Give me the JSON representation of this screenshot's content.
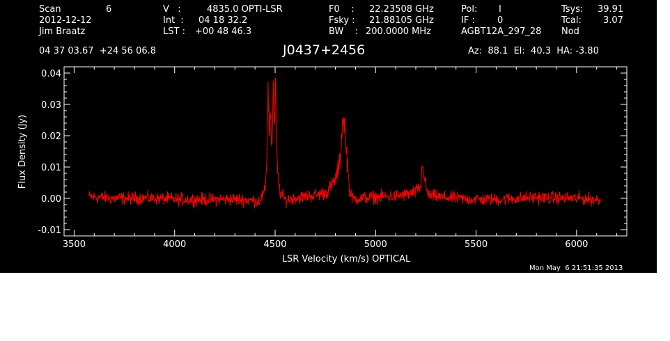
{
  "header": {
    "scan_label": "Scan",
    "scan_value": "6",
    "date": "2012-12-12",
    "observer": "Jim Braatz",
    "v_label": "V   :",
    "v_value": "4835.0 OPTI-LSR",
    "int_label": "Int  :",
    "int_value": "04 18 32.2",
    "lst_label": "LST :",
    "lst_value": "+00 48 46.3",
    "f0_label": "F0    :",
    "f0_value": "22.23508 GHz",
    "fsky_label": "Fsky :",
    "fsky_value": "21.88105 GHz",
    "bw_label": "BW    :",
    "bw_value": "200.0000 MHz",
    "pol_label": "Pol:",
    "pol_value": "I",
    "if_label": "IF :",
    "if_value": "0",
    "project": "AGBT12A_297_28",
    "tsys_label": "Tsys:",
    "tsys_value": "39.91",
    "tcal_label": "Tcal:",
    "tcal_value": "3.07",
    "proc": "Nod"
  },
  "coords": "04 37 03.67  +24 56 06.8",
  "source": "J0437+2456",
  "pointing": "Az:  88.1  El:  40.3  HA: -3.80",
  "timestamp": "Mon May  6 21:51:35 2013",
  "colors": {
    "background": "#000000",
    "axes": "#ffffff",
    "spectrum": "#ff0000"
  },
  "chart_data": {
    "type": "line",
    "xlabel": "LSR Velocity (km/s) OPTICAL",
    "ylabel": "Flux Density (Jy)",
    "xlim": [
      3450,
      6250
    ],
    "ylim": [
      -0.012,
      0.042
    ],
    "x_ticks": [
      3500,
      4000,
      4500,
      5000,
      5500,
      6000
    ],
    "x_tick_labels": [
      "3500",
      "4000",
      "4500",
      "5000",
      "5500",
      "6000"
    ],
    "y_ticks": [
      -0.01,
      0.0,
      0.01,
      0.02,
      0.03,
      0.04
    ],
    "y_tick_labels": [
      "-0.01",
      "0.00",
      "0.01",
      "0.02",
      "0.03",
      "0.04"
    ],
    "grid": false,
    "noise_rms": 0.001,
    "series": [
      {
        "x": [
          3575,
          3700,
          3850,
          4000,
          4150,
          4300,
          4420,
          4450,
          4458,
          4465,
          4472,
          4478,
          4484,
          4490,
          4496,
          4502,
          4508,
          4515,
          4525,
          4550,
          4620,
          4700,
          4760,
          4800,
          4818,
          4826,
          4834,
          4842,
          4848,
          4854,
          4860,
          4868,
          4876,
          4890,
          4920,
          5000,
          5100,
          5180,
          5210,
          5225,
          5235,
          5243,
          5260,
          5300,
          5400,
          5500,
          5600,
          5700,
          5800,
          5900,
          6000,
          6120
        ],
        "values": [
          0.0005,
          0.0,
          0.0001,
          -0.0003,
          -0.0004,
          -0.0003,
          -0.0008,
          0.002,
          0.012,
          0.035,
          0.02,
          0.03,
          0.012,
          0.036,
          0.02,
          0.038,
          0.015,
          0.006,
          0.002,
          -0.0005,
          0.0003,
          0.001,
          0.002,
          0.006,
          0.01,
          0.014,
          0.024,
          0.026,
          0.02,
          0.016,
          0.012,
          0.004,
          0.001,
          -0.0002,
          0.0,
          0.0004,
          0.0007,
          0.0015,
          0.0025,
          0.004,
          0.012,
          0.006,
          0.001,
          0.0005,
          0.0,
          -0.0003,
          -0.0004,
          0.0,
          0.0003,
          0.0001,
          0.0,
          -0.0005
        ]
      }
    ]
  }
}
